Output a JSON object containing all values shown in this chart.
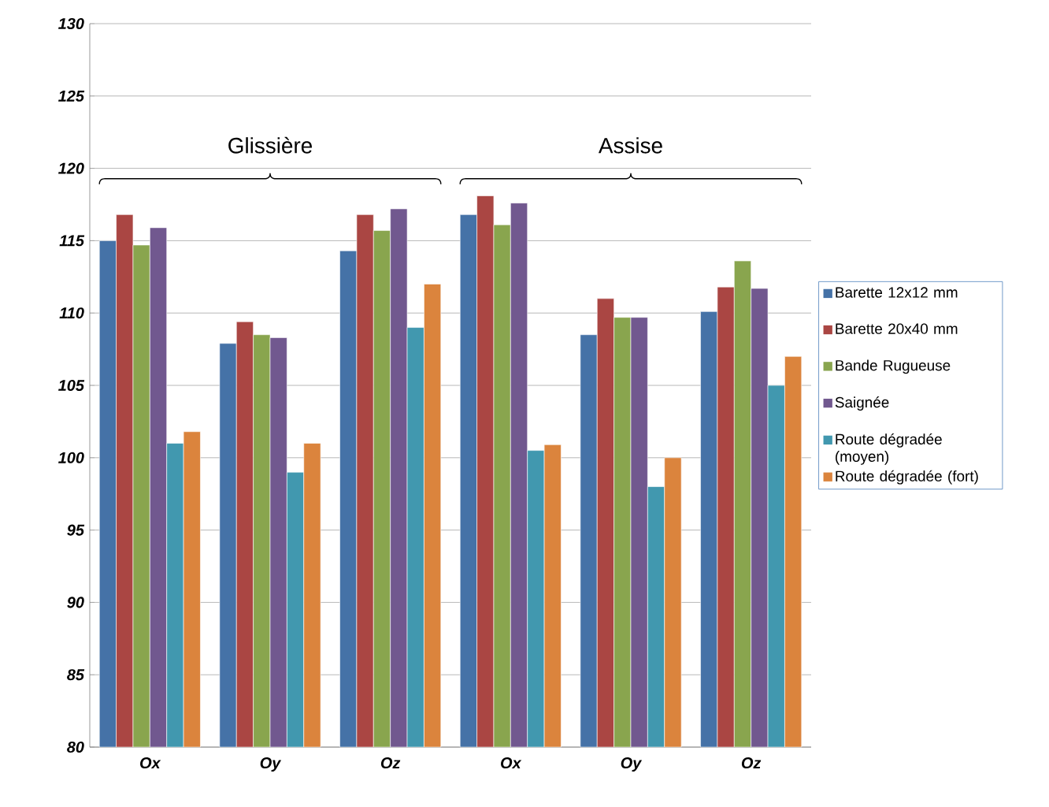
{
  "chart_data": {
    "type": "bar",
    "categories": [
      "Ox",
      "Oy",
      "Oz",
      "Ox",
      "Oy",
      "Oz"
    ],
    "series": [
      {
        "name": "Barette 12x12 mm",
        "color": "#4572a7",
        "values": [
          115,
          107.9,
          114.3,
          116.8,
          108.5,
          110.1
        ]
      },
      {
        "name": "Barette 20x40 mm",
        "color": "#aa4643",
        "values": [
          116.8,
          109.4,
          116.8,
          118.1,
          111,
          111.8
        ]
      },
      {
        "name": "Bande Rugueuse",
        "color": "#89a54e",
        "values": [
          114.7,
          108.5,
          115.7,
          116.1,
          109.7,
          113.6
        ]
      },
      {
        "name": "Saignée",
        "color": "#71588f",
        "values": [
          115.9,
          108.3,
          117.2,
          117.6,
          109.7,
          111.7
        ]
      },
      {
        "name": "Route dégradée (moyen)",
        "color": "#4198af",
        "values": [
          101,
          99,
          109,
          100.5,
          98,
          105
        ]
      },
      {
        "name": "Route dégradée (fort)",
        "color": "#db843d",
        "values": [
          101.8,
          101,
          112,
          100.9,
          100,
          107
        ]
      }
    ],
    "annotations": [
      "Glissière",
      "Assise"
    ],
    "ylim": [
      80,
      130
    ],
    "yticks": [
      80,
      85,
      90,
      95,
      100,
      105,
      110,
      115,
      120,
      125,
      130
    ],
    "grid": "y",
    "legend": "right"
  }
}
